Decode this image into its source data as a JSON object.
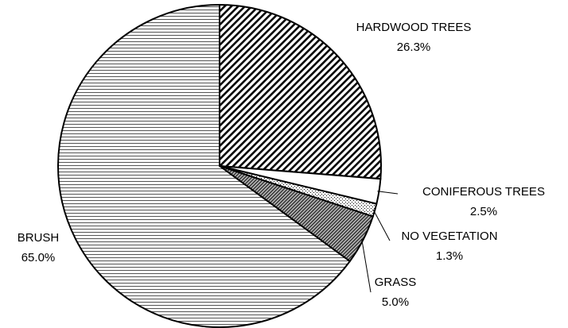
{
  "chart_data": {
    "type": "pie",
    "categories": [
      "HARDWOOD TREES",
      "CONIFEROUS TREES",
      "NO VEGETATION",
      "GRASS",
      "BRUSH"
    ],
    "values": [
      26.3,
      2.5,
      1.3,
      5.0,
      65.0
    ],
    "value_labels": [
      "26.3%",
      "2.5%",
      "1.3%",
      "5.0%",
      "65.0%"
    ]
  }
}
